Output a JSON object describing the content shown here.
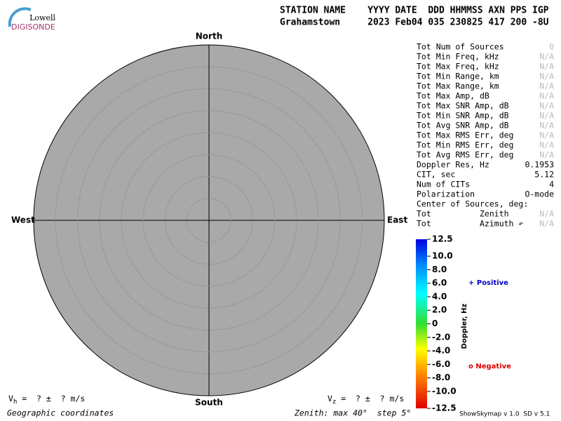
{
  "chart_data": {
    "type": "skymap",
    "logo": {
      "top": "Lowell",
      "bottom": "DIGISONDE"
    },
    "header": [
      "STATION NAME    YYYY DATE  DDD HHMMSS AXN PPS IGP",
      "Grahamstown     2023 Feb04 035 230825 417 200 -8U"
    ],
    "directions": {
      "north": "North",
      "south": "South",
      "west": "West",
      "east": "East"
    },
    "stats": [
      {
        "label": "Tot Num of Sources",
        "value": "0",
        "color": "#bbbbbb"
      },
      {
        "label": "Tot Min Freq, kHz",
        "value": "N/A",
        "color": "#bbbbbb"
      },
      {
        "label": "Tot Max Freq, kHz",
        "value": "N/A",
        "color": "#bbbbbb"
      },
      {
        "label": "Tot Min Range, km",
        "value": "N/A",
        "color": "#bbbbbb"
      },
      {
        "label": "Tot Max Range, km",
        "value": "N/A",
        "color": "#bbbbbb"
      },
      {
        "label": "Tot Max Amp, dB",
        "value": "N/A",
        "color": "#bbbbbb"
      },
      {
        "label": "Tot Max SNR Amp, dB",
        "value": "N/A",
        "color": "#bbbbbb"
      },
      {
        "label": "Tot Min SNR Amp, dB",
        "value": "N/A",
        "color": "#bbbbbb"
      },
      {
        "label": "Tot Avg SNR Amp, dB",
        "value": "N/A",
        "color": "#bbbbbb"
      },
      {
        "label": "Tot Max RMS Err, deg",
        "value": "N/A",
        "color": "#bbbbbb"
      },
      {
        "label": "Tot Min RMS Err, deg",
        "value": "N/A",
        "color": "#bbbbbb"
      },
      {
        "label": "Tot Avg RMS Err, deg",
        "value": "N/A",
        "color": "#bbbbbb"
      },
      {
        "label": "Doppler Res, Hz",
        "value": "0.1953",
        "color": "#000000"
      },
      {
        "label": "CIT, sec",
        "value": "5.12",
        "color": "#000000"
      },
      {
        "label": "Num of CITs",
        "value": "4",
        "color": "#000000"
      },
      {
        "label": "Polarization",
        "value": "O-mode",
        "color": "#000000"
      },
      {
        "label": "Center of Sources, deg:"
      },
      {
        "label": "Tot          Zenith",
        "value": "N/A",
        "color": "#bbbbbb"
      },
      {
        "label": "Tot          Azimuth ↶",
        "value": "N/A",
        "color": "#bbbbbb"
      }
    ],
    "colorbar": {
      "label": "Doppler, Hz",
      "ylim": [
        -12.5,
        12.5
      ],
      "yticks": [
        12.5,
        {
          "value": 10,
          "label": "10.0"
        },
        {
          "value": 8,
          "label": "8.0"
        },
        {
          "value": 6,
          "label": "6.0"
        },
        {
          "value": 4,
          "label": "4.0"
        },
        {
          "value": 2,
          "label": "2.0"
        },
        0,
        {
          "value": -2,
          "label": "-2.0"
        },
        {
          "value": -4,
          "label": "-4.0"
        },
        {
          "value": -6,
          "label": "-6.0"
        },
        {
          "value": -8,
          "label": "-8.0"
        },
        {
          "value": -10,
          "label": "-10.0"
        },
        -12.5
      ]
    },
    "legend": [
      {
        "name": "+ Positive",
        "color": "#0000cc"
      },
      {
        "name": "o Negative",
        "color": "#dd0000"
      }
    ],
    "vh": {
      "symbol": "V",
      "sub": "h",
      "text": " =  ? ±  ? m/s"
    },
    "vz": {
      "symbol": "V",
      "sub": "z",
      "text": " =  ? ±  ? m/s"
    },
    "coordinates": "Geographic coordinates",
    "zenith": "Zenith: max 40°  step 5°",
    "version": "ShowSkymap v 1.0  SD v 5.1"
  }
}
